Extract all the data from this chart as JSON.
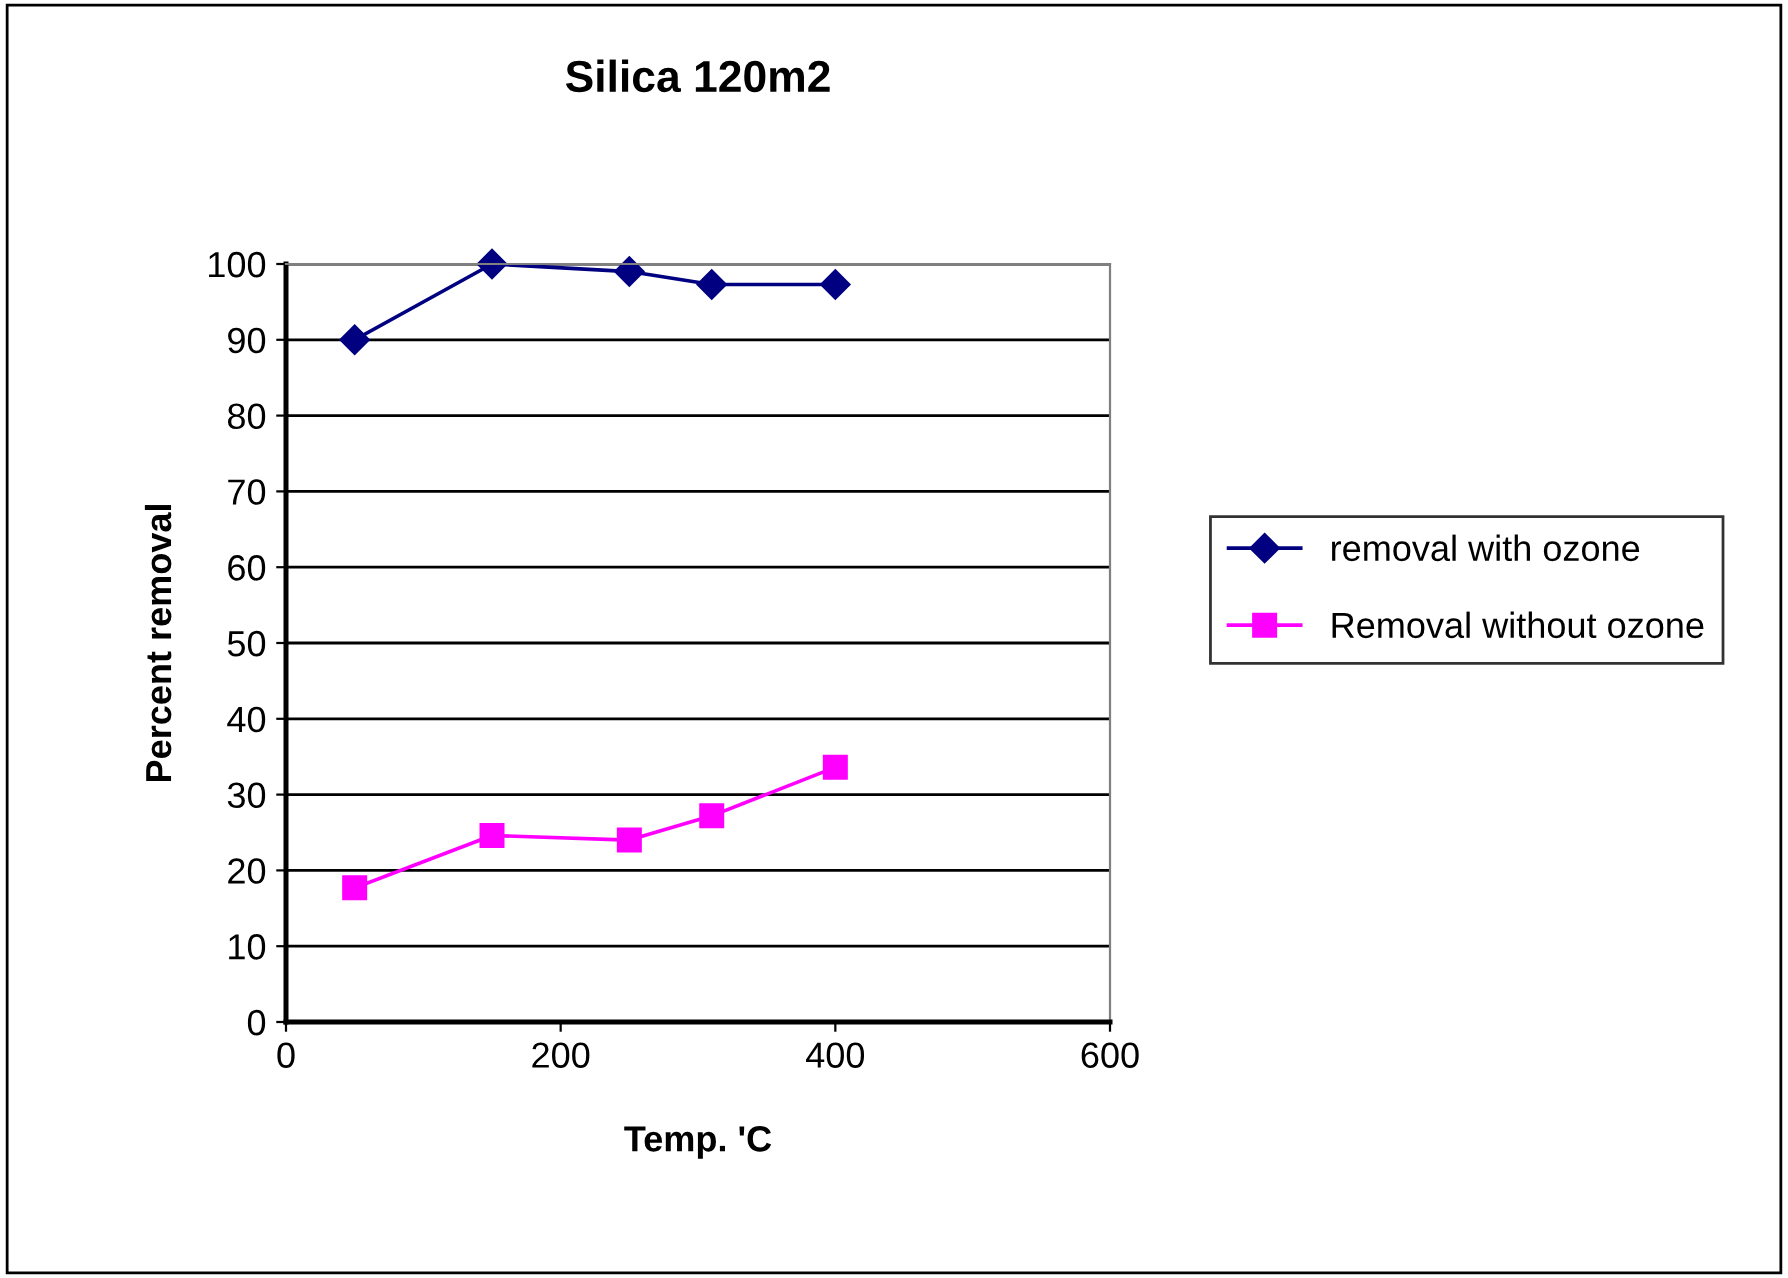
{
  "chart_data": {
    "type": "line",
    "title": "Silica 120m2",
    "xlabel": "Temp. 'C",
    "ylabel": "Percent removal",
    "x": [
      50,
      150,
      250,
      310,
      400
    ],
    "series": [
      {
        "name": "removal with ozone",
        "color": "#000080",
        "marker": "diamond",
        "values": [
          90,
          100,
          99,
          97.3,
          97.3
        ]
      },
      {
        "name": "Removal without ozone",
        "color": "#ff00ff",
        "marker": "square",
        "values": [
          17.7,
          24.6,
          24.0,
          27.2,
          33.6
        ]
      }
    ],
    "xlim": [
      0,
      600
    ],
    "xticks": [
      0,
      200,
      400,
      600
    ],
    "ylim": [
      0,
      100
    ],
    "yticks": [
      0,
      10,
      20,
      30,
      40,
      50,
      60,
      70,
      80,
      90,
      100
    ],
    "grid": "y",
    "legend": "right",
    "line_style": "solid"
  }
}
